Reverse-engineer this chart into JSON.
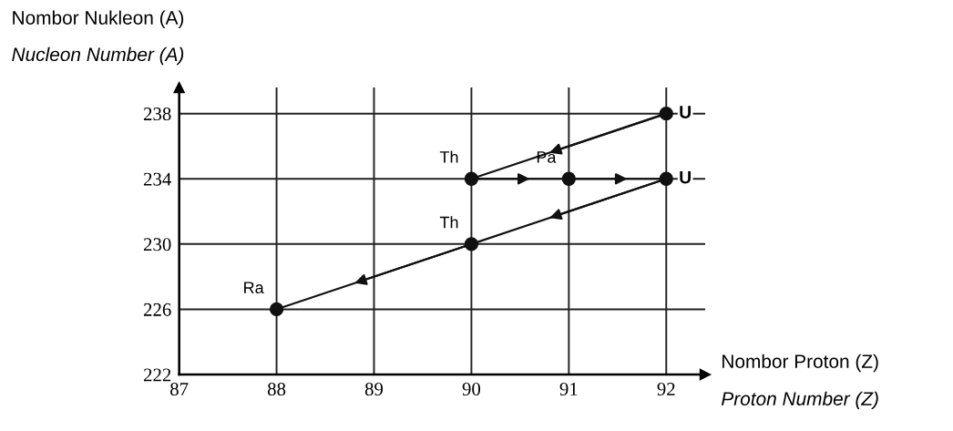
{
  "chart_data": {
    "type": "line",
    "x": [
      92,
      90,
      91,
      92,
      90,
      88
    ],
    "series": [
      {
        "color": "#111111",
        "values": [
          238,
          234,
          234,
          234,
          230,
          226
        ]
      }
    ],
    "xlim": [
      87,
      92.4
    ],
    "ylim": [
      222,
      239.6
    ],
    "xticks": [
      87,
      88,
      89,
      90,
      91,
      92
    ],
    "yticks": [
      222,
      226,
      230,
      234,
      238
    ],
    "grid": true,
    "marker": "circle",
    "line_style": "solid",
    "xlabel": "Nombor Proton (Z)",
    "ylabel": "Nombor Nukleon (A)",
    "annotations": [
      {
        "text": "U",
        "x": 92,
        "y": 238
      },
      {
        "text": "Th",
        "x": 90,
        "y": 234
      },
      {
        "text": "Pa",
        "x": 91,
        "y": 234
      },
      {
        "text": "U",
        "x": 92,
        "y": 234
      },
      {
        "text": "Th",
        "x": 90,
        "y": 230
      },
      {
        "text": "Ra",
        "x": 88,
        "y": 226
      },
      "Nucleon Number (A)",
      "Proton Number (Z)"
    ]
  }
}
